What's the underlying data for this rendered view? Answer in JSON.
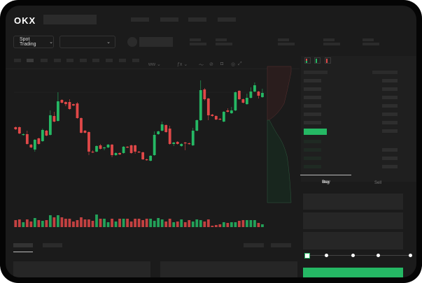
{
  "header": {
    "logo": "OKX"
  },
  "toolbar": {
    "market_select_label": "Spot Trading",
    "chevron": "⌄"
  },
  "order_form": {
    "tabs": [
      "Buy",
      "Sell"
    ],
    "active_tab": "Buy",
    "leverage_slider_value": 0
  },
  "colors": {
    "up": "#25b864",
    "down": "#e04848",
    "background": "#1b1b1b",
    "accent": "#25b864"
  },
  "chart_data": {
    "type": "candlestick",
    "ohlc": [
      [
        118,
        119,
        114,
        115
      ],
      [
        118,
        119,
        108,
        109
      ],
      [
        107,
        109,
        106,
        108
      ],
      [
        108,
        113,
        93,
        94
      ],
      [
        93,
        94,
        88,
        89
      ],
      [
        86,
        101,
        83,
        100
      ],
      [
        102,
        103,
        93,
        94
      ],
      [
        98,
        116,
        97,
        114
      ],
      [
        113,
        114,
        105,
        106
      ],
      [
        107,
        142,
        106,
        135
      ],
      [
        134,
        140,
        125,
        126
      ],
      [
        127,
        168,
        126,
        155
      ],
      [
        157,
        158,
        152,
        153
      ],
      [
        154,
        155,
        148,
        151
      ],
      [
        154,
        158,
        143,
        144
      ],
      [
        151,
        152,
        148,
        149
      ],
      [
        152,
        154,
        130,
        131
      ],
      [
        131,
        132,
        109,
        110
      ],
      [
        113,
        114,
        109,
        110
      ],
      [
        111,
        112,
        78,
        83
      ],
      [
        83,
        85,
        81,
        82
      ],
      [
        83,
        92,
        82,
        91
      ],
      [
        92,
        94,
        86,
        87
      ],
      [
        88,
        90,
        85,
        89
      ],
      [
        89,
        94,
        88,
        93
      ],
      [
        93,
        94,
        75,
        78
      ],
      [
        78,
        82,
        77,
        81
      ],
      [
        81,
        82,
        78,
        79
      ],
      [
        81,
        91,
        80,
        90
      ],
      [
        90,
        91,
        88,
        89
      ],
      [
        92,
        93,
        80,
        81
      ],
      [
        92,
        93,
        80,
        83
      ],
      [
        83,
        84,
        81,
        82
      ],
      [
        82,
        83,
        71,
        72
      ],
      [
        72,
        73,
        70,
        71
      ],
      [
        70,
        78,
        69,
        77
      ],
      [
        78,
        112,
        77,
        107
      ],
      [
        108,
        113,
        107,
        112
      ],
      [
        113,
        126,
        112,
        122
      ],
      [
        121,
        122,
        110,
        111
      ],
      [
        116,
        120,
        93,
        94
      ],
      [
        94,
        97,
        91,
        96
      ],
      [
        97,
        98,
        93,
        94
      ],
      [
        91,
        95,
        90,
        94
      ],
      [
        96,
        97,
        85,
        95
      ],
      [
        95,
        96,
        93,
        94
      ],
      [
        92,
        117,
        91,
        113
      ],
      [
        113,
        129,
        112,
        128
      ],
      [
        128,
        185,
        127,
        171
      ],
      [
        172,
        174,
        156,
        158
      ],
      [
        159,
        160,
        128,
        135
      ],
      [
        136,
        137,
        133,
        134
      ],
      [
        134,
        135,
        128,
        129
      ],
      [
        130,
        131,
        128,
        129
      ],
      [
        126,
        141,
        125,
        140
      ],
      [
        142,
        145,
        139,
        140
      ],
      [
        138,
        147,
        137,
        142
      ],
      [
        142,
        169,
        141,
        168
      ],
      [
        170,
        171,
        157,
        158
      ],
      [
        158,
        159,
        152,
        153
      ],
      [
        151,
        166,
        150,
        160
      ],
      [
        160,
        175,
        159,
        169
      ],
      [
        169,
        182,
        168,
        178
      ],
      [
        169,
        170,
        159,
        163
      ],
      [
        161,
        173,
        160,
        167
      ]
    ],
    "volume": [
      10,
      11,
      7,
      11,
      8,
      13,
      10,
      9,
      10,
      17,
      14,
      17,
      14,
      12,
      12,
      8,
      10,
      14,
      11,
      11,
      9,
      18,
      12,
      12,
      7,
      12,
      8,
      12,
      12,
      12,
      8,
      12,
      12,
      10,
      12,
      12,
      9,
      13,
      11,
      8,
      12,
      7,
      8,
      11,
      7,
      10,
      8,
      11,
      10,
      8,
      11,
      2,
      3,
      4,
      7,
      6,
      7,
      7,
      9,
      10,
      10,
      10,
      10,
      6,
      4
    ],
    "price_range": [
      10,
      205
    ],
    "grid": false
  }
}
